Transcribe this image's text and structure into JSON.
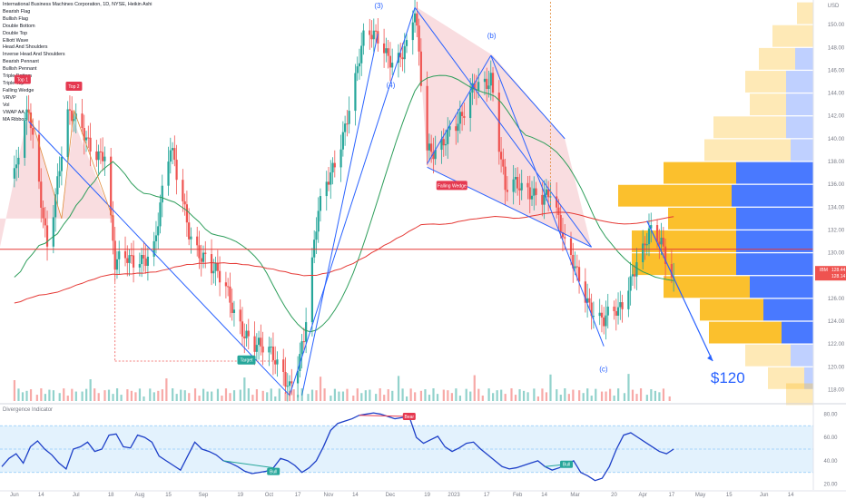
{
  "header": {
    "title": "International Business Machines Corporation, 1D, NYSE, Heikin Ashi",
    "indicators": [
      "Bearish Flag",
      "Bullish Flag",
      "Double Bottom",
      "Double Top",
      "Elliott Wave",
      "Head And Shoulders",
      "Inverse Head And Shoulders",
      "Bearish Pennant",
      "Bullish Pennant",
      "Triple Bottom",
      "Triple Top",
      "Falling Wedge",
      "VRVP",
      "Vol",
      "VWAP AA",
      "MA Ribbon"
    ]
  },
  "colors": {
    "up": "#26a69a",
    "down": "#ef5350",
    "ma_green": "#2e9e5b",
    "ma_red": "#e53935",
    "line_blue": "#2962ff",
    "wedge_fill": "#f8d7da",
    "vp_yellow": "#fbc02d",
    "vp_blue": "#2962ff",
    "osc_band": "#e3f2fd",
    "osc_line": "#1e40c8"
  },
  "chart_data": [
    {
      "type": "line",
      "name": "price",
      "currency": "USD",
      "y_ticks": [
        "150.00",
        "148.00",
        "146.00",
        "144.00",
        "142.00",
        "140.00",
        "138.00",
        "136.00",
        "134.00",
        "132.00",
        "130.00",
        "128.00",
        "126.00",
        "124.00",
        "122.00",
        "120.00",
        "118.00"
      ],
      "x_ticks": [
        "Jun",
        "14",
        "Jul",
        "18",
        "Aug",
        "15",
        "Sep",
        "19",
        "Oct",
        "17",
        "Nov",
        "14",
        "Dec",
        "19",
        "2023",
        "17",
        "Feb",
        "14",
        "Mar",
        "20",
        "Apr",
        "17",
        "May",
        "15",
        "Jun",
        "14"
      ],
      "ylim": [
        117,
        152
      ],
      "price_path": [
        {
          "date": "2022-06-01",
          "close": 136.5
        },
        {
          "date": "2022-06-08",
          "close": 142.0
        },
        {
          "date": "2022-06-17",
          "close": 131.5
        },
        {
          "date": "2022-06-27",
          "close": 141.5
        },
        {
          "date": "2022-07-07",
          "close": 140.0
        },
        {
          "date": "2022-07-15",
          "close": 139.0
        },
        {
          "date": "2022-07-20",
          "close": 128.5
        },
        {
          "date": "2022-07-27",
          "close": 129.0
        },
        {
          "date": "2022-08-08",
          "close": 131.0
        },
        {
          "date": "2022-08-16",
          "close": 138.5
        },
        {
          "date": "2022-08-25",
          "close": 132.5
        },
        {
          "date": "2022-09-06",
          "close": 128.0
        },
        {
          "date": "2022-09-13",
          "close": 126.0
        },
        {
          "date": "2022-09-20",
          "close": 124.0
        },
        {
          "date": "2022-09-30",
          "close": 121.0
        },
        {
          "date": "2022-10-07",
          "close": 120.0
        },
        {
          "date": "2022-10-13",
          "close": 119.0
        },
        {
          "date": "2022-10-20",
          "close": 122.5
        },
        {
          "date": "2022-10-27",
          "close": 133.0
        },
        {
          "date": "2022-11-04",
          "close": 138.5
        },
        {
          "date": "2022-11-11",
          "close": 143.0
        },
        {
          "date": "2022-11-18",
          "close": 148.0
        },
        {
          "date": "2022-11-25",
          "close": 149.0
        },
        {
          "date": "2022-12-02",
          "close": 147.5
        },
        {
          "date": "2022-12-09",
          "close": 147.5
        },
        {
          "date": "2022-12-13",
          "close": 150.5
        },
        {
          "date": "2022-12-19",
          "close": 139.0
        },
        {
          "date": "2022-12-27",
          "close": 140.5
        },
        {
          "date": "2023-01-05",
          "close": 141.0
        },
        {
          "date": "2023-01-12",
          "close": 145.0
        },
        {
          "date": "2023-01-19",
          "close": 146.0
        },
        {
          "date": "2023-01-26",
          "close": 135.0
        },
        {
          "date": "2023-02-03",
          "close": 135.5
        },
        {
          "date": "2023-02-10",
          "close": 136.0
        },
        {
          "date": "2023-02-17",
          "close": 135.0
        },
        {
          "date": "2023-02-24",
          "close": 130.0
        },
        {
          "date": "2023-03-03",
          "close": 128.5
        },
        {
          "date": "2023-03-10",
          "close": 125.0
        },
        {
          "date": "2023-03-15",
          "close": 123.5
        },
        {
          "date": "2023-03-22",
          "close": 124.5
        },
        {
          "date": "2023-03-31",
          "close": 130.0
        },
        {
          "date": "2023-04-06",
          "close": 131.5
        },
        {
          "date": "2023-04-12",
          "close": 130.0
        },
        {
          "date": "2023-04-18",
          "close": 127.5
        }
      ],
      "current_price": {
        "label": "IBM",
        "value": "128.44",
        "open": "128.14"
      },
      "horizontal_lines": [
        {
          "value": 130.3,
          "color": "#e53935"
        }
      ],
      "annotations": {
        "wave_labels": [
          "(3)",
          "(4)",
          "(b)",
          "(c)"
        ],
        "pattern_tags": [
          {
            "text": "Top 1",
            "color": "#e53950"
          },
          {
            "text": "Top 2",
            "color": "#e53950"
          },
          {
            "text": "Target",
            "color": "#26a69a"
          },
          {
            "text": "Falling Wedge",
            "color": "#e53950"
          }
        ],
        "target_text": "$120"
      }
    },
    {
      "type": "line",
      "name": "Divergence Indicator",
      "y_ticks": [
        "80.00",
        "60.00",
        "40.00",
        "20.00"
      ],
      "ylim": [
        15,
        85
      ],
      "band": [
        30,
        70
      ],
      "mid": 50,
      "values": [
        35,
        42,
        46,
        38,
        52,
        57,
        50,
        45,
        38,
        33,
        50,
        52,
        56,
        48,
        50,
        62,
        63,
        52,
        51,
        62,
        60,
        56,
        44,
        40,
        36,
        32,
        44,
        56,
        50,
        48,
        45,
        40,
        38,
        35,
        31,
        29,
        30,
        31,
        34,
        42,
        40,
        36,
        30,
        34,
        40,
        52,
        66,
        72,
        74,
        76,
        79,
        80,
        81,
        80,
        78,
        76,
        77,
        78,
        60,
        55,
        58,
        61,
        52,
        48,
        51,
        55,
        56,
        50,
        45,
        40,
        35,
        33,
        34,
        36,
        38,
        40,
        35,
        32,
        34,
        37,
        40,
        30,
        27,
        23,
        25,
        35,
        50,
        62,
        64,
        60,
        56,
        52,
        48,
        46,
        50
      ],
      "tags": [
        {
          "text": "Bull",
          "color": "#26a69a"
        },
        {
          "text": "Bear",
          "color": "#e53950"
        },
        {
          "text": "Bull",
          "color": "#26a69a"
        }
      ]
    }
  ]
}
